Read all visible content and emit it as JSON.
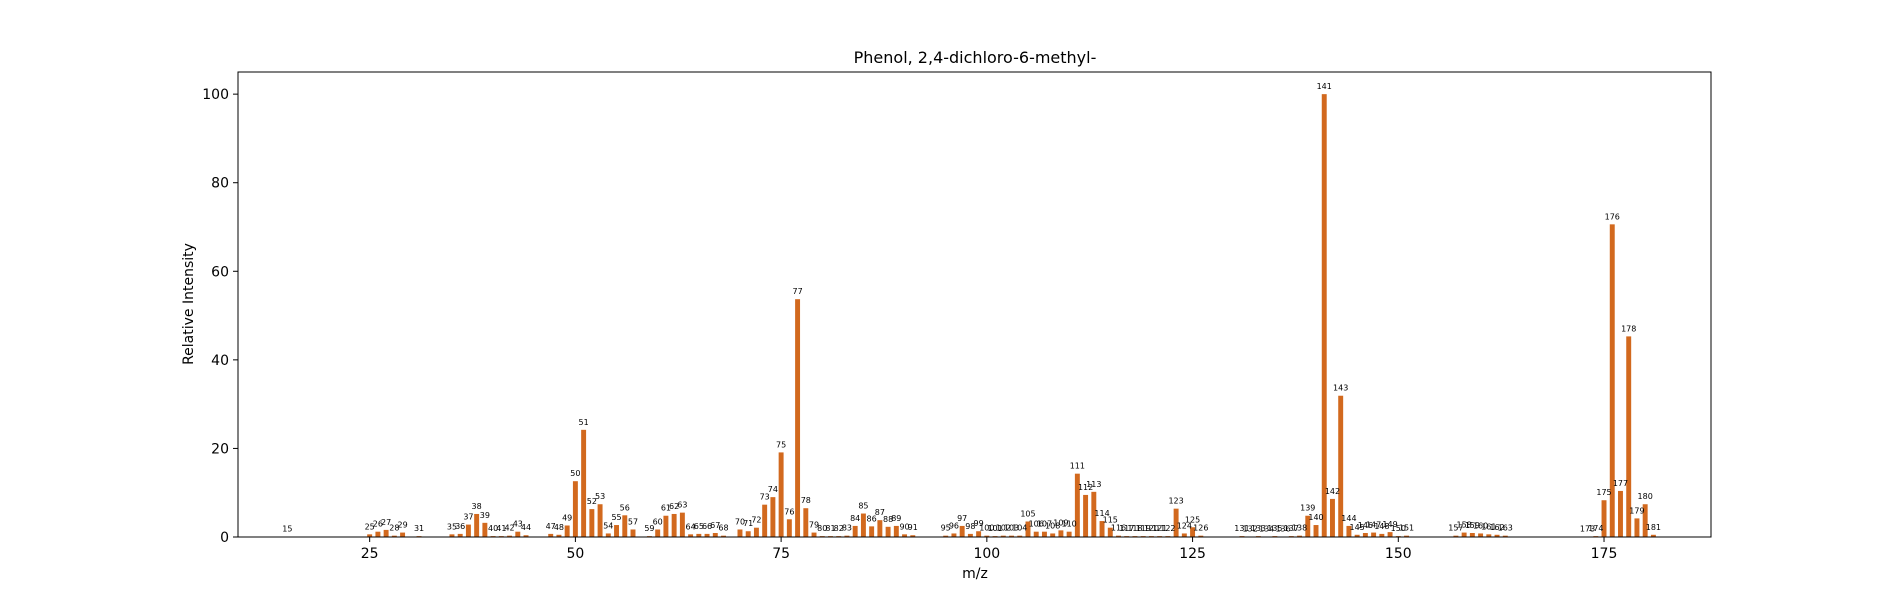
{
  "chart_data": {
    "type": "bar",
    "title": "Phenol, 2,4-dichloro-6-methyl-",
    "xlabel": "m/z",
    "ylabel": "Relative Intensity",
    "xlim": [
      9,
      188
    ],
    "ylim": [
      0,
      105
    ],
    "xticks": [
      25,
      50,
      75,
      100,
      125,
      150,
      175
    ],
    "yticks": [
      0,
      20,
      40,
      60,
      80,
      100
    ],
    "grid": false,
    "bar_color": "#d2691e",
    "x": [
      15,
      25,
      26,
      27,
      28,
      29,
      31,
      35,
      36,
      37,
      38,
      39,
      40,
      41,
      42,
      43,
      44,
      47,
      48,
      49,
      50,
      51,
      52,
      53,
      54,
      55,
      56,
      57,
      59,
      60,
      61,
      62,
      63,
      64,
      65,
      66,
      67,
      68,
      70,
      71,
      72,
      73,
      74,
      75,
      76,
      77,
      78,
      79,
      80,
      81,
      82,
      83,
      84,
      85,
      86,
      87,
      88,
      89,
      90,
      91,
      95,
      96,
      97,
      98,
      99,
      100,
      101,
      102,
      103,
      104,
      105,
      106,
      107,
      108,
      109,
      110,
      111,
      112,
      113,
      114,
      115,
      116,
      117,
      118,
      119,
      120,
      121,
      122,
      123,
      124,
      125,
      126,
      131,
      132,
      133,
      134,
      135,
      136,
      137,
      138,
      139,
      140,
      141,
      142,
      143,
      144,
      145,
      146,
      147,
      148,
      149,
      150,
      151,
      157,
      158,
      159,
      160,
      161,
      162,
      163,
      173,
      174,
      175,
      176,
      177,
      178,
      179,
      180,
      181
    ],
    "values": [
      0.1,
      0.6,
      1.2,
      1.6,
      0.3,
      1.0,
      0.2,
      0.6,
      0.7,
      2.8,
      5.2,
      3.2,
      0.2,
      0.2,
      0.3,
      1.2,
      0.4,
      0.7,
      0.5,
      2.6,
      12.6,
      24.2,
      6.3,
      7.4,
      0.8,
      2.7,
      4.9,
      1.7,
      0.2,
      1.7,
      4.8,
      5.2,
      5.5,
      0.6,
      0.7,
      0.7,
      0.9,
      0.3,
      1.7,
      1.3,
      2.1,
      7.3,
      9.0,
      19.1,
      4.0,
      53.7,
      6.5,
      1.0,
      0.2,
      0.2,
      0.2,
      0.3,
      2.5,
      5.3,
      2.4,
      3.8,
      2.3,
      2.5,
      0.6,
      0.4,
      0.3,
      0.8,
      2.5,
      0.7,
      1.3,
      0.3,
      0.2,
      0.3,
      0.3,
      0.3,
      3.5,
      1.2,
      1.2,
      0.8,
      1.5,
      1.2,
      14.3,
      9.5,
      10.2,
      3.6,
      2.1,
      0.3,
      0.2,
      0.2,
      0.2,
      0.2,
      0.2,
      0.2,
      6.4,
      0.8,
      2.2,
      0.3,
      0.2,
      0.1,
      0.2,
      0.1,
      0.2,
      0.1,
      0.2,
      0.3,
      4.8,
      2.7,
      100.0,
      8.6,
      31.9,
      2.5,
      0.5,
      0.9,
      1.0,
      0.7,
      1.1,
      0.2,
      0.3,
      0.3,
      1.0,
      0.9,
      0.8,
      0.6,
      0.5,
      0.3,
      0.1,
      0.2,
      8.3,
      70.6,
      10.4,
      45.3,
      4.2,
      7.4,
      0.5
    ],
    "bar_labels": [
      "15",
      "25",
      "26",
      "27",
      "28",
      "29",
      "31",
      "35",
      "36",
      "37",
      "38",
      "39",
      "40",
      "41",
      "42",
      "43",
      "44",
      "47",
      "48",
      "49",
      "50",
      "51",
      "52",
      "53",
      "54",
      "55",
      "56",
      "57",
      "59",
      "60",
      "61",
      "62",
      "63",
      "64",
      "65",
      "66",
      "67",
      "68",
      "70",
      "71",
      "72",
      "73",
      "74",
      "75",
      "76",
      "77",
      "78",
      "79",
      "80",
      "81",
      "82",
      "83",
      "84",
      "85",
      "86",
      "87",
      "88",
      "89",
      "90",
      "91",
      "95",
      "96",
      "97",
      "98",
      "99",
      "100",
      "101",
      "102",
      "103",
      "104",
      "105",
      "106",
      "107",
      "108",
      "109",
      "110",
      "111",
      "112",
      "113",
      "114",
      "115",
      "116",
      "117",
      "118",
      "119",
      "120",
      "121",
      "122",
      "123",
      "124",
      "125",
      "126",
      "131",
      "132",
      "133",
      "134",
      "135",
      "136",
      "137",
      "138",
      "139",
      "140",
      "141",
      "142",
      "143",
      "144",
      "145",
      "146",
      "147",
      "148",
      "149",
      "150",
      "151",
      "157",
      "158",
      "159",
      "160",
      "161",
      "162",
      "163",
      "173",
      "174",
      "175",
      "176",
      "177",
      "178",
      "179",
      "180",
      "181"
    ]
  }
}
